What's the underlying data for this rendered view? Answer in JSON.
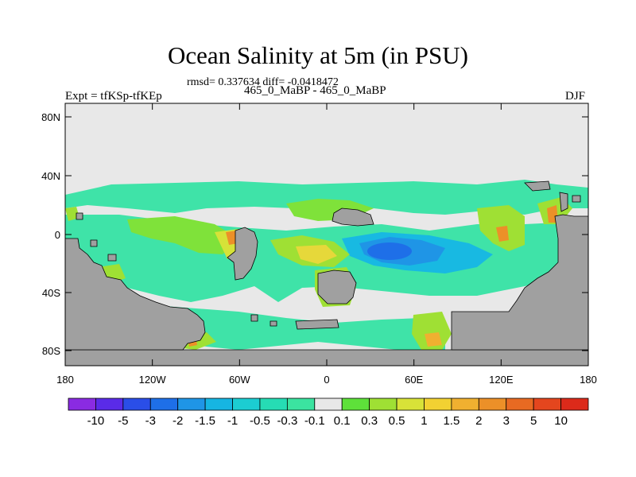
{
  "header": {
    "title": "Ocean Salinity at 5m (in PSU)",
    "stats": "rmsd= 0.337634 diff= -0.0418472",
    "case": "465_0_MaBP - 465_0_MaBP",
    "expt": "Expt = tfKSp-tfKEp",
    "season": "DJF"
  },
  "axes": {
    "lat_labels": [
      "80N",
      "40N",
      "0",
      "40S",
      "80S"
    ],
    "lon_labels": [
      "180",
      "120W",
      "60W",
      "0",
      "60E",
      "120E",
      "180"
    ]
  },
  "colorbar": {
    "labels": [
      "-10",
      "-5",
      "-3",
      "-2",
      "-1.5",
      "-1",
      "-0.5",
      "-0.3",
      "-0.1",
      "0.1",
      "0.3",
      "0.5",
      "1",
      "1.5",
      "2",
      "3",
      "5",
      "10"
    ],
    "colors": [
      "#8a2be2",
      "#5a2be8",
      "#2a4ee8",
      "#1e6fe8",
      "#1f95e6",
      "#16b5e2",
      "#1ccdd2",
      "#26dcb4",
      "#3be3a0",
      "#e8e8e8",
      "#5ee13a",
      "#9fe034",
      "#d8e238",
      "#f2d132",
      "#f0b030",
      "#ec9028",
      "#e86a22",
      "#e4461e",
      "#dc2a1a"
    ]
  },
  "colors": {
    "land": "#a0a0a0",
    "neutral": "#e8e8e8",
    "low_positive": "#40e4a0",
    "deep_negative": "#1f6fe0"
  }
}
